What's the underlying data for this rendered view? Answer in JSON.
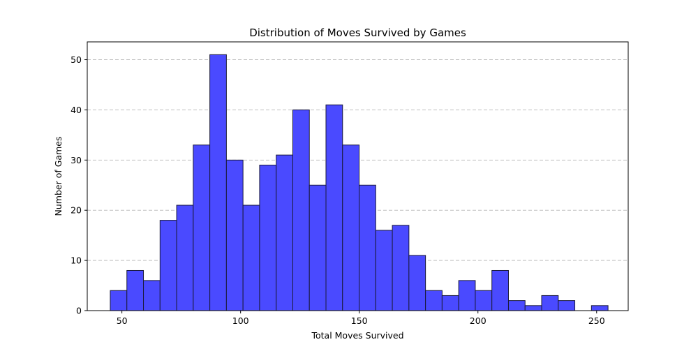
{
  "chart_data": {
    "type": "bar",
    "title": "Distribution of Moves Survived by Games",
    "xlabel": "Total Moves Survived",
    "ylabel": "Number of Games",
    "xlim": [
      35.4,
      263.3
    ],
    "ylim": [
      0,
      53.55
    ],
    "bin_start": 45.1,
    "bin_width": 6.99,
    "values": [
      4,
      8,
      6,
      18,
      21,
      33,
      51,
      30,
      21,
      29,
      31,
      40,
      25,
      41,
      33,
      25,
      16,
      17,
      11,
      4,
      3,
      6,
      4,
      8,
      2,
      1,
      3,
      2,
      0,
      1
    ],
    "xticks": [
      50,
      100,
      150,
      200,
      250
    ],
    "yticks": [
      0,
      10,
      20,
      30,
      40,
      50
    ],
    "grid": "y-dashed",
    "colors": {
      "bar_fill": "#4a4aff",
      "bar_edge": "#1a1a3a",
      "grid": "#b0b0b0"
    }
  }
}
